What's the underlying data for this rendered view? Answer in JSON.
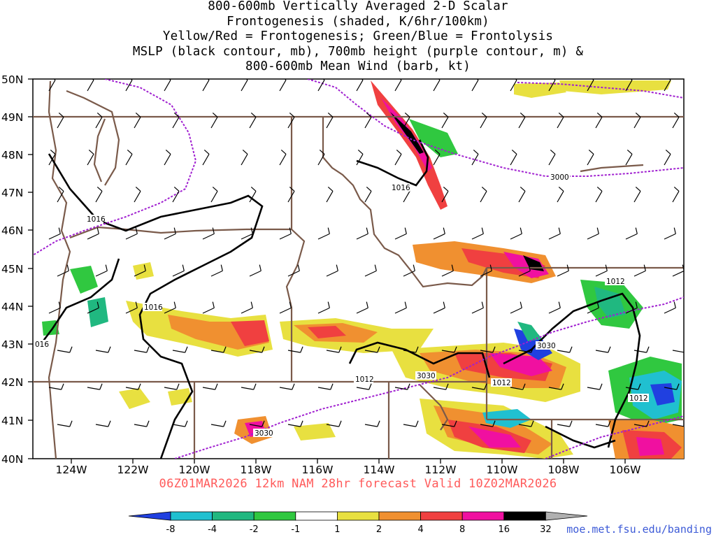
{
  "header": {
    "title_lines": [
      "800-600mb Vertically Averaged 2-D Scalar",
      "Frontogenesis (shaded, K/6hr/100km)",
      "Yellow/Red = Frontogenesis;  Green/Blue = Frontolysis",
      "MSLP (black contour, mb), 700mb height (purple contour, m) &",
      "800-600mb Mean Wind (barb, kt)"
    ]
  },
  "map": {
    "lat_labels": [
      "50N",
      "49N",
      "48N",
      "47N",
      "46N",
      "45N",
      "44N",
      "43N",
      "42N",
      "41N",
      "40N"
    ],
    "lon_labels": [
      "124W",
      "122W",
      "120W",
      "118W",
      "116W",
      "114W",
      "112W",
      "110W",
      "108W",
      "106W"
    ],
    "mslp_labels": [
      "1016",
      "1016",
      "1016",
      "016",
      "1012",
      "1012",
      "1012",
      "1012"
    ],
    "height_labels": [
      "3000",
      "3030",
      "3030",
      "3030"
    ],
    "colors": {
      "mslp_contour": "#000000",
      "height_contour": "#a020d0",
      "border": "#7a5a4a",
      "barb": "#000000"
    }
  },
  "footer": {
    "forecast_text": "06Z01MAR2026 12km NAM 28hr forecast Valid 10Z02MAR2026",
    "url": "moe.met.fsu.edu/banding"
  },
  "colorbar": {
    "labels": [
      "-8",
      "-4",
      "-2",
      "-1",
      "1",
      "2",
      "4",
      "8",
      "16",
      "32"
    ],
    "colors": [
      "#2040e0",
      "#20c0d0",
      "#20b880",
      "#30c840",
      "#ffffff",
      "#e8e040",
      "#f09030",
      "#f04040",
      "#f010a0",
      "#000000",
      "#b0b0b0"
    ]
  }
}
